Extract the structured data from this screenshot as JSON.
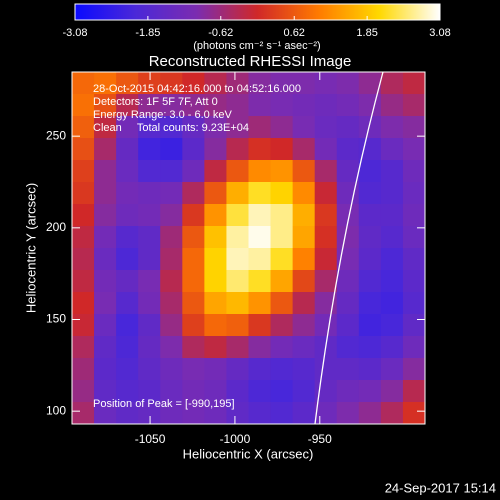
{
  "chart_data": {
    "type": "heatmap",
    "title": "Reconstructed RHESSI Image",
    "xlabel": "Heliocentric X (arcsec)",
    "ylabel": "Heliocentric Y (arcsec)",
    "colorbar_label": "(photons cm⁻² s⁻¹ asec⁻²)",
    "annotations": [
      "28-Oct-2015 04:42:16.000 to 04:52:16.000",
      "Detectors: 1F 5F 7F, Att 0",
      "Energy Range: 3.0 - 6.0 keV",
      "Clean     Total counts: 9.23E+04"
    ],
    "peak_label": "Position of Peak = [-990,195]",
    "footer": "24-Sep-2017 15:14",
    "xlim": [
      -1096,
      -888
    ],
    "ylim": [
      93,
      285
    ],
    "xticks": [
      -1050,
      -1000,
      -950
    ],
    "yticks": [
      100,
      150,
      200,
      250
    ],
    "clim": [
      -3.08,
      3.08
    ],
    "cticks": [
      -3.08,
      -1.85,
      -0.62,
      0.62,
      1.85,
      3.08
    ],
    "colormap": [
      "#0a0aff",
      "#4b28d8",
      "#7b2cb0",
      "#d02828",
      "#ff7a00",
      "#ffd800",
      "#ffffff"
    ],
    "x": [
      -1089.5,
      -1076.5,
      -1063.5,
      -1050.5,
      -1037.5,
      -1024.5,
      -1011.5,
      -998.5,
      -985.5,
      -972.5,
      -959.5,
      -946.5,
      -933.5,
      -920.5,
      -907.5,
      -894.5
    ],
    "y": [
      279,
      267,
      255,
      243,
      231,
      219,
      207,
      195,
      183,
      171,
      159,
      147,
      135,
      123,
      111,
      99
    ],
    "z": [
      [
        0.8,
        0.9,
        0.6,
        0.3,
        0.2,
        0.0,
        -0.3,
        -0.6,
        -0.9,
        -1.0,
        -1.0,
        -1.1,
        -1.0,
        -0.8,
        -0.4,
        -0.2
      ],
      [
        0.9,
        0.5,
        -0.3,
        -0.8,
        -0.9,
        -0.8,
        -0.7,
        -0.8,
        -1.0,
        -1.1,
        -1.2,
        -1.3,
        -1.2,
        -1.0,
        -0.7,
        -0.5
      ],
      [
        0.7,
        -0.2,
        -1.2,
        -1.8,
        -1.9,
        -1.5,
        -1.0,
        -0.8,
        -0.6,
        -0.8,
        -1.1,
        -1.4,
        -1.5,
        -1.3,
        -1.0,
        -0.9
      ],
      [
        0.5,
        -0.5,
        -1.5,
        -2.2,
        -2.3,
        -1.7,
        -0.9,
        -0.3,
        0.1,
        0.0,
        -0.5,
        -1.2,
        -1.7,
        -1.8,
        -1.4,
        -1.1
      ],
      [
        0.3,
        -0.8,
        -1.4,
        -1.9,
        -1.9,
        -1.3,
        -0.2,
        0.6,
        1.2,
        1.3,
        0.6,
        -0.5,
        -1.5,
        -2.0,
        -1.8,
        -1.3
      ],
      [
        0.2,
        -0.8,
        -1.2,
        -1.3,
        -1.2,
        -0.4,
        0.6,
        1.6,
        2.2,
        2.0,
        1.2,
        -0.1,
        -1.3,
        -1.9,
        -1.8,
        -1.4
      ],
      [
        0.0,
        -0.9,
        -1.3,
        -1.2,
        -0.9,
        0.2,
        1.3,
        2.3,
        2.8,
        2.6,
        1.6,
        0.2,
        -1.1,
        -1.7,
        -1.7,
        -1.3
      ],
      [
        -0.2,
        -1.2,
        -1.8,
        -1.6,
        -0.6,
        0.6,
        1.8,
        2.7,
        3.0,
        2.6,
        1.5,
        0.1,
        -1.0,
        -1.6,
        -1.8,
        -1.4
      ],
      [
        -0.3,
        -1.4,
        -2.0,
        -1.6,
        -0.5,
        0.8,
        2.0,
        2.8,
        2.7,
        2.2,
        1.1,
        -0.1,
        -1.1,
        -1.7,
        -2.0,
        -1.6
      ],
      [
        -0.2,
        -1.2,
        -1.5,
        -1.1,
        -0.3,
        0.8,
        2.0,
        2.5,
        2.2,
        1.5,
        0.4,
        -0.5,
        -1.3,
        -1.9,
        -2.1,
        -1.7
      ],
      [
        0.0,
        -1.1,
        -1.8,
        -1.2,
        -0.5,
        0.6,
        1.5,
        1.7,
        1.3,
        0.6,
        -0.3,
        -0.9,
        -1.5,
        -2.1,
        -2.2,
        -1.8
      ],
      [
        -0.1,
        -1.4,
        -2.1,
        -1.6,
        -0.7,
        0.3,
        0.8,
        0.7,
        0.2,
        -0.4,
        -0.8,
        -1.2,
        -1.7,
        -2.2,
        -2.1,
        -1.6
      ],
      [
        -0.4,
        -1.6,
        -2.0,
        -1.5,
        -1.0,
        -0.4,
        -0.2,
        -0.5,
        -0.9,
        -1.2,
        -1.4,
        -1.6,
        -1.9,
        -2.0,
        -1.8,
        -1.3
      ],
      [
        -0.6,
        -1.7,
        -1.9,
        -1.6,
        -1.3,
        -1.1,
        -1.2,
        -1.5,
        -1.8,
        -1.9,
        -1.8,
        -1.6,
        -1.6,
        -1.7,
        -1.4,
        -0.9
      ],
      [
        -0.7,
        -1.6,
        -1.8,
        -1.7,
        -1.4,
        -1.2,
        -1.3,
        -1.7,
        -2.0,
        -2.1,
        -1.9,
        -1.5,
        -1.3,
        -1.2,
        -0.9,
        -0.3
      ],
      [
        -0.5,
        -1.4,
        -1.6,
        -1.5,
        -1.3,
        -1.2,
        -1.3,
        -1.6,
        -1.8,
        -1.9,
        -1.7,
        -1.3,
        -1.0,
        -0.8,
        -0.4,
        0.1
      ]
    ]
  }
}
